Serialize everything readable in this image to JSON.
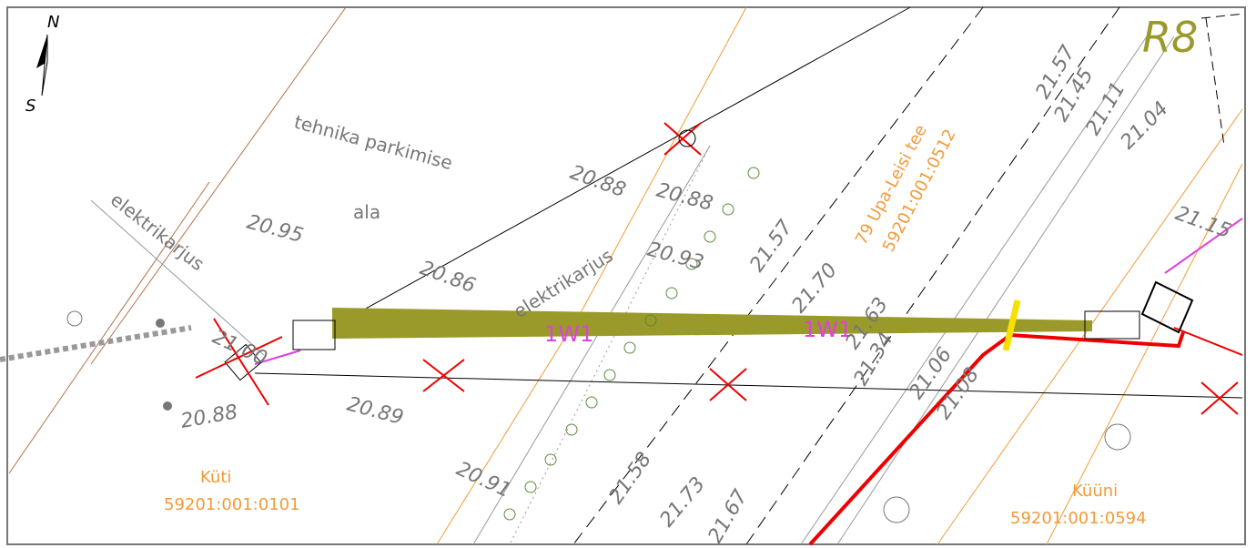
{
  "compass": {
    "north": "N",
    "south": "S"
  },
  "sheet": "R8",
  "area_label": {
    "line1": "tehnika parkimise",
    "line2": "ala"
  },
  "fence_labels": [
    "elektrikarjus",
    "elektrikarjus"
  ],
  "cable_labels": [
    "1W1",
    "1W1"
  ],
  "road": {
    "name": "79 Upa-Leisi tee",
    "code": "59201:001:0512"
  },
  "parcels": [
    {
      "name": "Küti",
      "code": "59201:001:0101"
    },
    {
      "name": "Küüni",
      "code": "59201:001:0594"
    }
  ],
  "elevations": [
    "20.95",
    "20.86",
    "20.88",
    "20.88",
    "20.93",
    "21.57",
    "21.70",
    "21.63",
    "21.34",
    "21.06",
    "21.08",
    "21.57",
    "21.45",
    "21.11",
    "21.04",
    "21.15",
    "21.00",
    "20.89",
    "20.88",
    "20.91",
    "21.58",
    "21.73",
    "21.67"
  ]
}
